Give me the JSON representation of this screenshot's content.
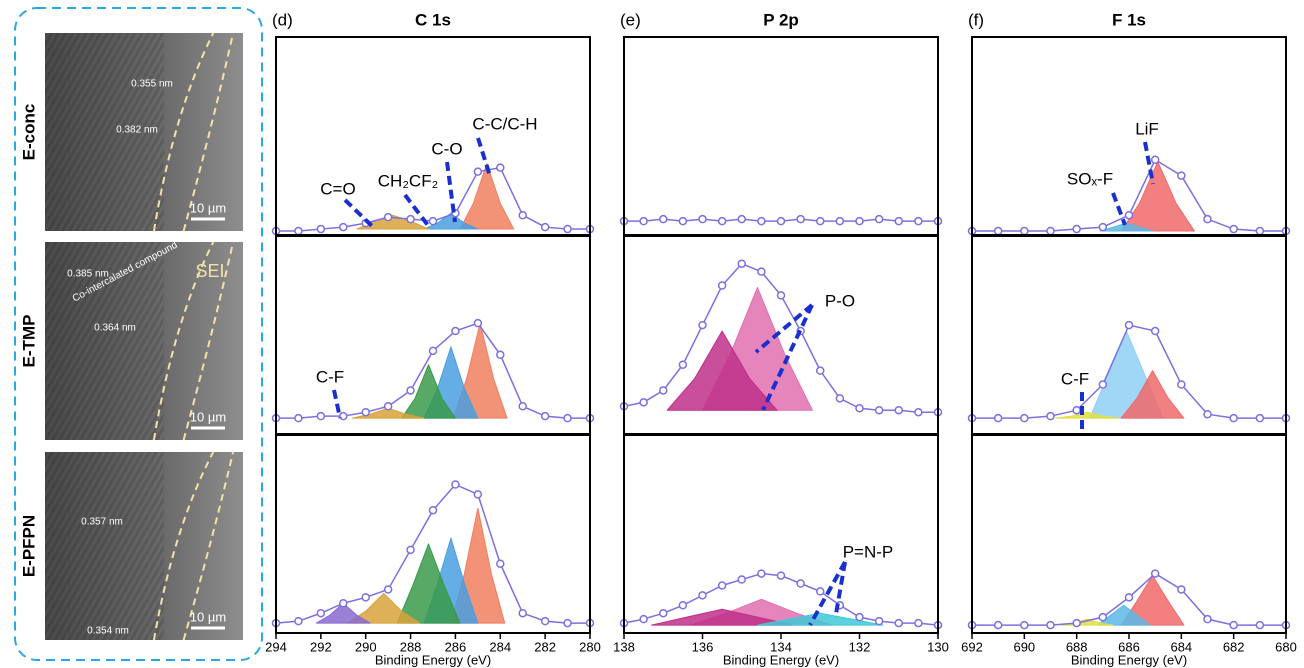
{
  "images": [
    {
      "label": "E-conc",
      "texts": [
        "0.355 nm",
        "0.382 nm"
      ],
      "scale_bar": "10 µm"
    },
    {
      "label": "E-TMP",
      "texts": [
        "0.385 nm",
        "Co-intercalated compound",
        "0.364 nm",
        "SEI"
      ],
      "scale_bar": "10 µm"
    },
    {
      "label": "E-PFPN",
      "texts": [
        "0.357 nm",
        "0.354 nm"
      ],
      "scale_bar": "10 µm"
    }
  ],
  "chart_data": [
    {
      "type": "line",
      "panel": "(d)",
      "title": "C 1s",
      "xlabel": "Binding Energy (eV)",
      "xlim": [
        294,
        280
      ],
      "xticks": [
        294,
        292,
        290,
        288,
        286,
        284,
        282,
        280
      ],
      "ylim": [
        0,
        100
      ],
      "x": [
        294,
        293,
        292,
        291,
        290,
        289,
        288,
        287,
        286,
        285,
        284,
        283,
        282,
        281,
        280
      ],
      "rows": [
        {
          "annotations": [
            "C=O",
            "CH₂CF₂",
            "C-O",
            "C-C/C-H"
          ],
          "envelope": {
            "color": "#7a70e0",
            "values": [
              2,
              2,
              3,
              4,
              6,
              9,
              8,
              7,
              11,
              32,
              34,
              10,
              4,
              3,
              3
            ]
          },
          "components": [
            {
              "color": "#f07f5e",
              "x": [
                285.8,
                285.2,
                284.6,
                284.0,
                283.4
              ],
              "values": [
                3,
                16,
                36,
                16,
                3
              ]
            },
            {
              "color": "#4a9fe0",
              "x": [
                287.4,
                286.8,
                286.2,
                285.6,
                285.0
              ],
              "values": [
                3,
                6,
                11,
                6,
                3
              ]
            },
            {
              "color": "#d8a23a",
              "x": [
                290.4,
                289.6,
                288.8,
                288.0,
                287.2
              ],
              "values": [
                3,
                7,
                10,
                7,
                3
              ]
            }
          ]
        },
        {
          "annotations": [
            "C-F"
          ],
          "envelope": {
            "color": "#7a70e0",
            "values": [
              8,
              8,
              9,
              9,
              11,
              14,
              22,
              42,
              52,
              56,
              40,
              14,
              9,
              8,
              8
            ]
          },
          "components": [
            {
              "color": "#f07f5e",
              "x": [
                286.1,
                285.5,
                284.9,
                284.3,
                283.7
              ],
              "values": [
                8,
                28,
                56,
                28,
                8
              ]
            },
            {
              "color": "#4a9fe0",
              "x": [
                287.4,
                286.8,
                286.2,
                285.6,
                285
              ],
              "values": [
                8,
                23,
                44,
                23,
                8
              ]
            },
            {
              "color": "#3a9a4a",
              "x": [
                288.4,
                287.8,
                287.2,
                286.6,
                286
              ],
              "values": [
                8,
                18,
                35,
                18,
                8
              ]
            },
            {
              "color": "#d8a23a",
              "x": [
                290.6,
                289.8,
                289,
                288.2,
                287.4
              ],
              "values": [
                8,
                10,
                13,
                10,
                8
              ]
            }
          ]
        },
        {
          "annotations": [],
          "envelope": {
            "color": "#7a70e0",
            "values": [
              5,
              6,
              10,
              15,
              18,
              22,
              42,
              62,
              75,
              70,
              35,
              10,
              6,
              5,
              5
            ]
          },
          "components": [
            {
              "color": "#f07f5e",
              "x": [
                286.2,
                285.6,
                285,
                284.4,
                283.8
              ],
              "values": [
                5,
                30,
                63,
                30,
                5
              ]
            },
            {
              "color": "#4a9fe0",
              "x": [
                287.4,
                286.8,
                286.2,
                285.6,
                285
              ],
              "values": [
                5,
                25,
                48,
                25,
                5
              ]
            },
            {
              "color": "#3a9a4a",
              "x": [
                288.6,
                287.9,
                287.2,
                286.5,
                285.8
              ],
              "values": [
                5,
                24,
                45,
                24,
                5
              ]
            },
            {
              "color": "#d8a23a",
              "x": [
                290.8,
                290,
                289.2,
                288.4,
                287.6
              ],
              "values": [
                5,
                11,
                20,
                11,
                5
              ]
            },
            {
              "color": "#8a6ad0",
              "x": [
                292.2,
                291.6,
                291,
                290.4,
                289.8
              ],
              "values": [
                5,
                9,
                15,
                9,
                5
              ]
            }
          ]
        }
      ]
    },
    {
      "type": "line",
      "panel": "(e)",
      "title": "P 2p",
      "xlabel": "Binding Energy (eV)",
      "xlim": [
        138,
        130
      ],
      "xticks": [
        138,
        136,
        134,
        132,
        130
      ],
      "ylim": [
        0,
        100
      ],
      "x": [
        138,
        137.5,
        137,
        136.5,
        136,
        135.5,
        135,
        134.5,
        134,
        133.5,
        133,
        132.5,
        132,
        131.5,
        131,
        130.5,
        130
      ],
      "rows": [
        {
          "annotations": [],
          "envelope": {
            "color": "#7a70e0",
            "values": [
              7,
              7,
              8,
              7,
              8,
              7,
              8,
              7,
              7,
              8,
              7,
              7,
              7,
              8,
              7,
              7,
              7
            ]
          },
          "components": []
        },
        {
          "annotations": [
            "P-O"
          ],
          "envelope": {
            "color": "#7a70e0",
            "values": [
              14,
              16,
              22,
              35,
              55,
              75,
              86,
              82,
              70,
              52,
              32,
              18,
              13,
              12,
              12,
              11,
              11
            ]
          },
          "components": [
            {
              "color": "#e070b0",
              "x": [
                136,
                135.3,
                134.6,
                133.9,
                133.2
              ],
              "values": [
                12,
                40,
                74,
                40,
                12
              ]
            },
            {
              "color": "#c0308a",
              "x": [
                136.9,
                136.2,
                135.5,
                134.8,
                134.1
              ],
              "values": [
                12,
                28,
                52,
                28,
                12
              ]
            }
          ]
        },
        {
          "annotations": [
            "P=N-P"
          ],
          "envelope": {
            "color": "#7a70e0",
            "values": [
              5,
              7,
              10,
              14,
              19,
              24,
              27,
              30,
              29,
              25,
              21,
              14,
              8,
              6,
              5,
              5,
              4
            ]
          },
          "components": [
            {
              "color": "#e070b0",
              "x": [
                136.3,
                135.4,
                134.5,
                133.6,
                132.7
              ],
              "values": [
                4,
                10,
                17,
                10,
                4
              ]
            },
            {
              "color": "#c0308a",
              "x": [
                137.3,
                136.4,
                135.5,
                134.6,
                133.7
              ],
              "values": [
                4,
                8,
                12,
                8,
                4
              ]
            },
            {
              "color": "#40c8d8",
              "x": [
                134.6,
                133.8,
                133,
                132.2,
                131.4
              ],
              "values": [
                4,
                7,
                10,
                7,
                4
              ]
            }
          ]
        }
      ]
    },
    {
      "type": "line",
      "panel": "(f)",
      "title": "F 1s",
      "xlabel": "Binding Energy (eV)",
      "xlim": [
        692,
        680
      ],
      "xticks": [
        692,
        690,
        688,
        686,
        684,
        682,
        680
      ],
      "ylim": [
        0,
        100
      ],
      "x": [
        692,
        691,
        690,
        689,
        688,
        687,
        686,
        685,
        684,
        683,
        682,
        681,
        680
      ],
      "rows": [
        {
          "annotations": [
            "SOₓ-F",
            "LiF"
          ],
          "envelope": {
            "color": "#7a70e0",
            "values": [
              2,
              2,
              2,
              2,
              3,
              4,
              10,
              38,
              30,
              8,
              3,
              2,
              2
            ]
          },
          "components": [
            {
              "color": "#f06a6a",
              "x": [
                686.3,
                685.6,
                684.9,
                684.2,
                683.5
              ],
              "values": [
                2,
                16,
                37,
                16,
                2
              ]
            },
            {
              "color": "#5ab8e8",
              "x": [
                687.1,
                686.6,
                686.1,
                685.6,
                685.1
              ],
              "values": [
                2,
                4,
                6,
                4,
                2
              ]
            }
          ]
        },
        {
          "annotations": [
            "C-F"
          ],
          "envelope": {
            "color": "#7a70e0",
            "values": [
              8,
              8,
              8,
              9,
              12,
              25,
              55,
              52,
              25,
              10,
              8,
              8,
              8
            ]
          },
          "components": [
            {
              "color": "#8fd0f5",
              "x": [
                687.5,
                686.8,
                686.1,
                685.4,
                684.7
              ],
              "values": [
                8,
                30,
                52,
                30,
                8
              ]
            },
            {
              "color": "#f06a6a",
              "x": [
                686.3,
                685.7,
                685.1,
                684.5,
                683.9
              ],
              "values": [
                8,
                18,
                32,
                18,
                8
              ]
            },
            {
              "color": "#e0e040",
              "x": [
                688.8,
                688.2,
                687.6,
                687,
                686.4
              ],
              "values": [
                8,
                9,
                11,
                9,
                8
              ]
            }
          ]
        },
        {
          "annotations": [],
          "envelope": {
            "color": "#7a70e0",
            "values": [
              4,
              4,
              4,
              4,
              5,
              8,
              18,
              30,
              22,
              7,
              4,
              4,
              4
            ]
          },
          "components": [
            {
              "color": "#f06a6a",
              "x": [
                686.3,
                685.7,
                685.1,
                684.5,
                683.9
              ],
              "values": [
                4,
                16,
                29,
                16,
                4
              ]
            },
            {
              "color": "#5ab8e8",
              "x": [
                687.2,
                686.7,
                686.2,
                685.7,
                685.2
              ],
              "values": [
                4,
                9,
                14,
                9,
                4
              ]
            },
            {
              "color": "#e0e040",
              "x": [
                688.6,
                688.1,
                687.6,
                687.1,
                686.6
              ],
              "values": [
                4,
                5,
                7,
                5,
                4
              ]
            }
          ]
        }
      ]
    }
  ]
}
